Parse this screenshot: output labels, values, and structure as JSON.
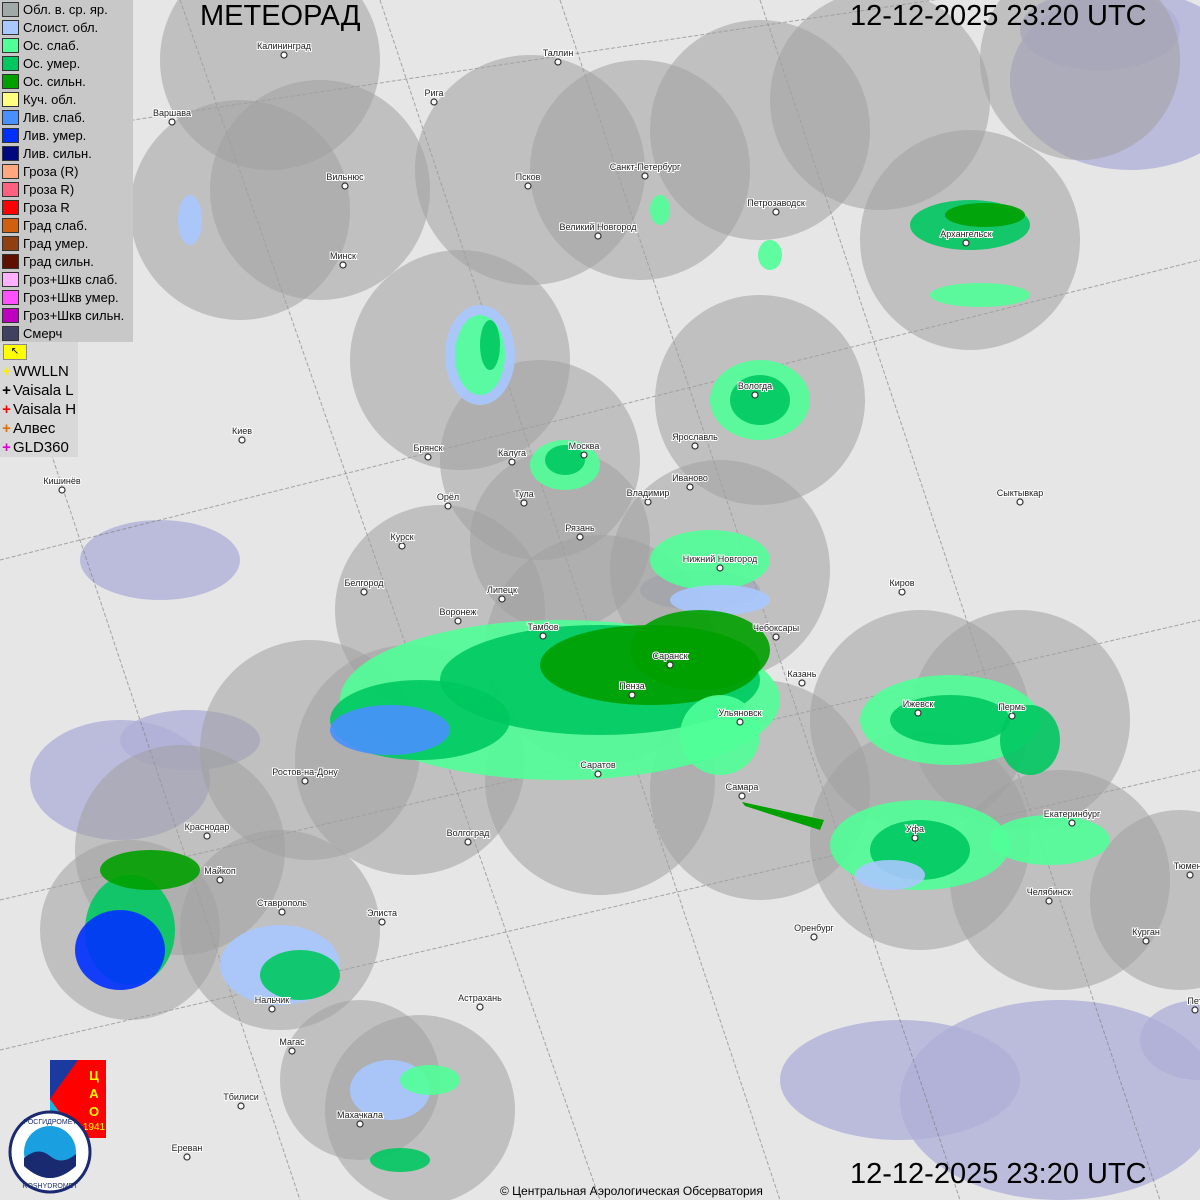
{
  "header": {
    "title": "МЕТЕОРАД",
    "timestamp_top": "12-12-2025  23:20 UTC",
    "timestamp_bottom": "12-12-2025  23:20 UTC"
  },
  "legend": [
    {
      "label": "Обл. в. ср. яр.",
      "color": "#a0a8a8"
    },
    {
      "label": "Слоист. обл.",
      "color": "#a8c8ff"
    },
    {
      "label": "Ос. слаб.",
      "color": "#50ff98"
    },
    {
      "label": "Ос. умер.",
      "color": "#00c860"
    },
    {
      "label": "Ос. сильн.",
      "color": "#00a000"
    },
    {
      "label": "Куч. обл.",
      "color": "#ffff80"
    },
    {
      "label": "Лив. слаб.",
      "color": "#4890ff"
    },
    {
      "label": "Лив. умер.",
      "color": "#0030ff"
    },
    {
      "label": "Лив. сильн.",
      "color": "#000880"
    },
    {
      "label": "Гроза (R)",
      "color": "#ffa880"
    },
    {
      "label": "Гроза R)",
      "color": "#ff6080"
    },
    {
      "label": "Гроза R",
      "color": "#ff0000"
    },
    {
      "label": "Град слаб.",
      "color": "#d06010"
    },
    {
      "label": "Град умер.",
      "color": "#904010"
    },
    {
      "label": "Град сильн.",
      "color": "#601000"
    },
    {
      "label": "Гроз+Шкв слаб.",
      "color": "#ffb0ff"
    },
    {
      "label": "Гроз+Шкв умер.",
      "color": "#ff50ff"
    },
    {
      "label": "Гроз+Шкв сильн.",
      "color": "#c000c0"
    },
    {
      "label": "Смерч",
      "color": "#404060"
    }
  ],
  "lightning_flag": "↖",
  "lightning": [
    {
      "label": "WWLLN",
      "color": "#ffee00"
    },
    {
      "label": "Vaisala L",
      "color": "#000000"
    },
    {
      "label": "Vaisala H",
      "color": "#ff0000"
    },
    {
      "label": "Алвес",
      "color": "#e07000"
    },
    {
      "label": "GLD360",
      "color": "#e000e0"
    }
  ],
  "cities": [
    "Калининград",
    "Таллин",
    "Рига",
    "Варшава",
    "Вильнюс",
    "Псков",
    "Санкт-Петербург",
    "Петрозаводск",
    "Архангельск",
    "Великий Новгород",
    "Минск",
    "Вологда",
    "Москва",
    "Калуга",
    "Ярославль",
    "Брянск",
    "Иваново",
    "Киев",
    "Тула",
    "Владимир",
    "Орёл",
    "Сыктывкар",
    "Кишинёв",
    "Рязань",
    "Курск",
    "Нижний Новгород",
    "Белгород",
    "Липецк",
    "Киров",
    "Воронеж",
    "Тамбов",
    "Чебоксары",
    "Саранск",
    "Казань",
    "Пенза",
    "Ижевск",
    "Пермь",
    "Ульяновск",
    "Саратов",
    "Ростов-на-Дону",
    "Самара",
    "Краснодар",
    "Уфа",
    "Екатеринбург",
    "Волгоград",
    "Майкоп",
    "Тюмень",
    "Челябинск",
    "Ставрополь",
    "Элиста",
    "Оренбург",
    "Курган",
    "Нальчик",
    "Астрахань",
    "Магас",
    "Тбилиси",
    "Махачкала",
    "Ереван",
    "Пет"
  ],
  "logos": {
    "cao": "ЦАО 1941",
    "roshydromet": "РОСГИДРОМЕТ ROSHYDROMET"
  },
  "copyright": "© Центральная Аэрологическая Обсерватория"
}
